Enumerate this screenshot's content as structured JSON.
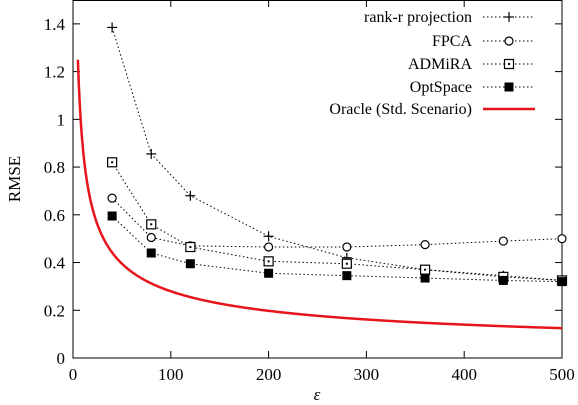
{
  "chart_data": {
    "type": "line",
    "title": "",
    "xlabel": "ε",
    "ylabel": "RMSE",
    "xlim": [
      0,
      500
    ],
    "ylim": [
      0,
      1.5
    ],
    "x_ticks": [
      0,
      100,
      200,
      300,
      400,
      500
    ],
    "y_ticks": [
      0,
      0.2,
      0.4,
      0.6,
      0.8,
      1,
      1.2,
      1.4
    ],
    "x_tick_labels": [
      "0",
      "100",
      "200",
      "300",
      "400",
      "500"
    ],
    "y_tick_labels": [
      "0",
      "0.2",
      "0.4",
      "0.6",
      "0.8",
      "1",
      "1.2",
      "1.4"
    ],
    "grid": false,
    "legend_position": "top-right",
    "series": [
      {
        "name": "rank-r projection",
        "marker": "plus",
        "line_style": "dotted",
        "color": "#000000",
        "x": [
          40,
          80,
          120,
          200,
          280,
          360,
          440,
          500
        ],
        "y": [
          1.385,
          0.855,
          0.68,
          0.51,
          0.42,
          0.37,
          0.345,
          0.325
        ]
      },
      {
        "name": "FPCA",
        "marker": "open-circle",
        "line_style": "dotted",
        "color": "#000000",
        "x": [
          40,
          80,
          120,
          200,
          280,
          360,
          440,
          500
        ],
        "y": [
          0.67,
          0.505,
          0.47,
          0.465,
          0.465,
          0.475,
          0.49,
          0.5
        ]
      },
      {
        "name": "ADMiRA",
        "marker": "open-square-dot",
        "line_style": "dotted",
        "color": "#000000",
        "x": [
          40,
          80,
          120,
          200,
          280,
          360,
          440,
          500
        ],
        "y": [
          0.82,
          0.56,
          0.465,
          0.405,
          0.395,
          0.37,
          0.34,
          0.325
        ]
      },
      {
        "name": "OptSpace",
        "marker": "filled-square",
        "line_style": "dotted",
        "color": "#000000",
        "x": [
          40,
          80,
          120,
          200,
          280,
          360,
          440,
          500
        ],
        "y": [
          0.595,
          0.44,
          0.395,
          0.355,
          0.345,
          0.335,
          0.325,
          0.32
        ]
      },
      {
        "name": "Oracle (Std. Scenario)",
        "marker": "none",
        "line_style": "solid",
        "color": "#e8141c",
        "function": "oracle",
        "x_range": [
          5,
          500
        ]
      }
    ]
  }
}
